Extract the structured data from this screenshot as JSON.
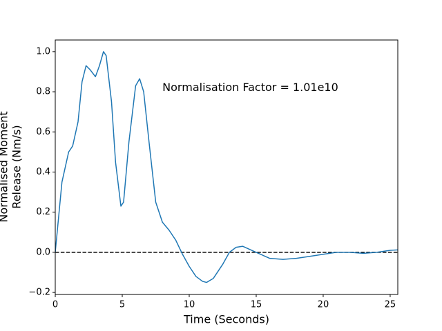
{
  "chart_data": {
    "type": "line",
    "xlabel": "Time (Seconds)",
    "ylabel": [
      "Normalised Moment",
      "Release (Nm/s)"
    ],
    "annotation": {
      "text": "Normalisation Factor = 1.01e10",
      "x": 8.0,
      "y": 0.82
    },
    "hline": 0,
    "xlim": [
      0,
      25.57
    ],
    "ylim": [
      -0.21,
      1.058
    ],
    "xticks": [
      0,
      5,
      10,
      15,
      20,
      25
    ],
    "yticks": [
      {
        "value": -0.2,
        "label": "−0.2"
      },
      {
        "value": 0,
        "label": "0.0"
      },
      0.2,
      0.4,
      0.6,
      0.8,
      {
        "value": 1,
        "label": "1.0"
      }
    ],
    "series": [
      {
        "color": "#1f77b4",
        "x": [
          0,
          0.5,
          1,
          1.3,
          1.7,
          2,
          2.3,
          2.6,
          3,
          3.3,
          3.6,
          3.8,
          4.2,
          4.5,
          4.9,
          5.1,
          5.5,
          6,
          6.3,
          6.6,
          7,
          7.5,
          8,
          8.5,
          9,
          9.5,
          10,
          10.5,
          11,
          11.3,
          11.8,
          12.5,
          13,
          13.5,
          14,
          14.5,
          15,
          16,
          17,
          18,
          19,
          20,
          21,
          22,
          23,
          24,
          25,
          25.57
        ],
        "values": [
          0,
          0.35,
          0.5,
          0.53,
          0.65,
          0.85,
          0.93,
          0.91,
          0.875,
          0.93,
          1.0,
          0.98,
          0.75,
          0.45,
          0.23,
          0.25,
          0.55,
          0.83,
          0.865,
          0.8,
          0.55,
          0.25,
          0.15,
          0.11,
          0.06,
          -0.01,
          -0.07,
          -0.12,
          -0.145,
          -0.15,
          -0.13,
          -0.06,
          0.0,
          0.025,
          0.03,
          0.015,
          0.0,
          -0.03,
          -0.035,
          -0.03,
          -0.02,
          -0.01,
          0.0,
          0.0,
          -0.005,
          0.0,
          0.01,
          0.012
        ]
      }
    ]
  }
}
